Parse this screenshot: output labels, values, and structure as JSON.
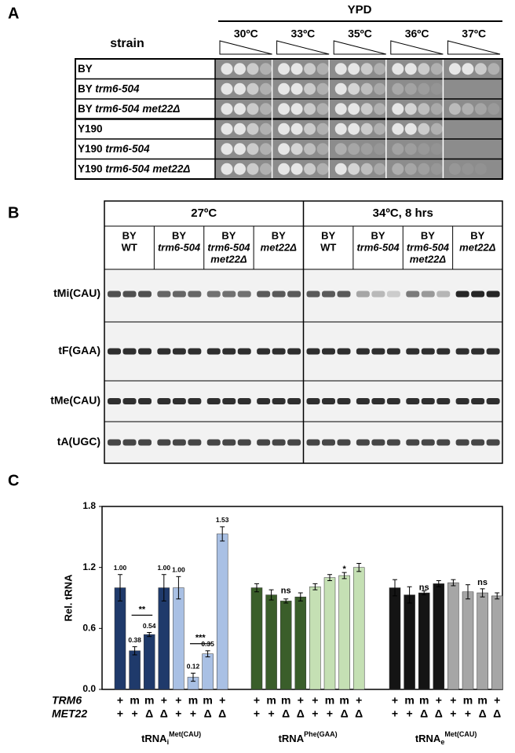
{
  "panel_a": {
    "label": "A",
    "medium": "YPD",
    "strain_header": "strain",
    "temperatures": [
      "30ºC",
      "33ºC",
      "35ºC",
      "36ºC",
      "37ºC"
    ],
    "strains": [
      {
        "base": "BY"
      },
      {
        "base": "BY",
        "genotype": "trm6-504"
      },
      {
        "base": "BY",
        "genotype": "trm6-504 met22Δ"
      },
      {
        "base": "Y190"
      },
      {
        "base": "Y190",
        "genotype": "trm6-504"
      },
      {
        "base": "Y190",
        "genotype": "trm6-504 met22Δ"
      }
    ]
  },
  "panel_b": {
    "label": "B",
    "conditions": [
      {
        "name": "27ºC",
        "lanes": [
          {
            "lines": [
              "BY",
              "WT"
            ]
          },
          {
            "lines": [
              "BY",
              "trm6-504"
            ],
            "italic": true
          },
          {
            "lines": [
              "BY",
              "trm6-504",
              "met22Δ"
            ],
            "italic": true
          },
          {
            "lines": [
              "BY",
              "met22Δ"
            ],
            "italic": true
          }
        ]
      },
      {
        "name": "34ºC, 8 hrs",
        "lanes": [
          {
            "lines": [
              "BY",
              "WT"
            ]
          },
          {
            "lines": [
              "BY",
              "trm6-504"
            ],
            "italic": true
          },
          {
            "lines": [
              "BY",
              "trm6-504",
              "met22Δ"
            ],
            "italic": true
          },
          {
            "lines": [
              "BY",
              "met22Δ"
            ],
            "italic": true
          }
        ]
      }
    ],
    "probes": [
      "tMi(CAU)",
      "tF(GAA)",
      "tMe(CAU)",
      "tA(UGC)"
    ]
  },
  "chart_data": {
    "type": "bar",
    "label": "C",
    "ylabel": "Rel. tRNA",
    "ylim": [
      0,
      1.8
    ],
    "yticks": [
      {
        "value": 0,
        "label": "0.0"
      },
      0.6,
      1.2,
      1.8
    ],
    "genotype_rows": [
      {
        "name": "TRM6",
        "values": [
          "+",
          "m",
          "m",
          "+",
          "+",
          "m",
          "m",
          "+"
        ]
      },
      {
        "name": "MET22",
        "values": [
          "+",
          "+",
          "Δ",
          "Δ",
          "+",
          "+",
          "Δ",
          "Δ"
        ]
      }
    ],
    "groups": [
      {
        "name": {
          "base": "tRNA",
          "sub": "i",
          "sup": "Met(CAU)"
        },
        "values": [
          1.0,
          0.38,
          0.54,
          1.0,
          1.0,
          0.12,
          0.35,
          1.53
        ],
        "value_labels": [
          "1.00",
          "0.38",
          "0.54",
          "1.00",
          "1.00",
          "0.12",
          "0.35",
          "1.53"
        ],
        "errors": [
          0.13,
          0.04,
          0.02,
          0.13,
          0.11,
          0.04,
          0.03,
          0.07
        ],
        "colors": [
          "#1f3a6b",
          "#1f3a6b",
          "#1f3a6b",
          "#1f3a6b",
          "#a9c0e4",
          "#a9c0e4",
          "#a9c0e4",
          "#a9c0e4"
        ],
        "annotations": [
          {
            "text": "**",
            "bars": [
              1,
              2
            ],
            "y": 0.73,
            "line": true
          },
          {
            "text": "***",
            "bars": [
              5,
              6
            ],
            "y": 0.45,
            "line": true
          }
        ]
      },
      {
        "name": {
          "base": "tRNA",
          "sup": "Phe(GAA)"
        },
        "values": [
          1.0,
          0.93,
          0.87,
          0.91,
          1.01,
          1.1,
          1.12,
          1.2
        ],
        "errors": [
          0.04,
          0.05,
          0.02,
          0.04,
          0.03,
          0.03,
          0.03,
          0.04
        ],
        "colors": [
          "#3a5e2a",
          "#3a5e2a",
          "#3a5e2a",
          "#3a5e2a",
          "#c5e0b4",
          "#c5e0b4",
          "#c5e0b4",
          "#c5e0b4"
        ],
        "annotations": [
          {
            "text": "ns",
            "bars": [
              2
            ],
            "y": 0.97
          },
          {
            "text": "*",
            "bars": [
              6
            ],
            "y": 1.18
          }
        ]
      },
      {
        "name": {
          "base": "tRNA",
          "sub": "e",
          "sup": "Met(CAU)"
        },
        "values": [
          1.0,
          0.93,
          0.95,
          1.04,
          1.05,
          0.96,
          0.95,
          0.92
        ],
        "errors": [
          0.08,
          0.08,
          0.02,
          0.03,
          0.03,
          0.07,
          0.04,
          0.03
        ],
        "colors": [
          "#141414",
          "#141414",
          "#141414",
          "#141414",
          "#a6a6a6",
          "#a6a6a6",
          "#a6a6a6",
          "#a6a6a6"
        ],
        "annotations": [
          {
            "text": "ns",
            "bars": [
              2
            ],
            "y": 1.0
          },
          {
            "text": "ns",
            "bars": [
              6
            ],
            "y": 1.05
          }
        ]
      }
    ]
  }
}
